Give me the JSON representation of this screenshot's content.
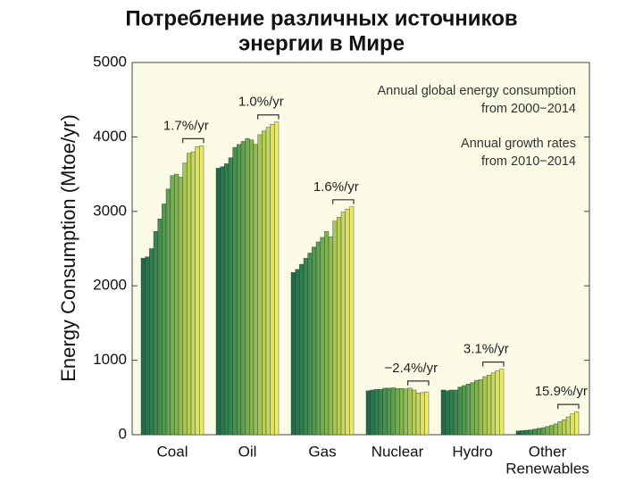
{
  "chart_data": {
    "type": "grouped-bar",
    "title": [
      "Потребление различных источников",
      "энергии в Мире"
    ],
    "ylabel": "Energy Consumption (Mtoe/yr)",
    "ylim": [
      0,
      5000
    ],
    "yticks": [
      0,
      1000,
      2000,
      3000,
      4000,
      5000
    ],
    "annotations": [
      [
        "Annual global energy consumption",
        "from 2000−2014"
      ],
      [
        "Annual growth rates",
        "from 2010−2014"
      ]
    ],
    "colors": [
      "#1f6b4c",
      "#27744d",
      "#2f7d4e",
      "#3a864f",
      "#468f50",
      "#539850",
      "#62a150",
      "#72aa50",
      "#83b350",
      "#94bc52",
      "#a6c555",
      "#b8ce59",
      "#cad75e",
      "#dce064",
      "#eeea6b"
    ],
    "groups": [
      {
        "label": [
          "Coal"
        ],
        "rate": "1.7%/yr",
        "values": [
          2370,
          2390,
          2500,
          2730,
          2900,
          3100,
          3300,
          3480,
          3500,
          3460,
          3650,
          3780,
          3800,
          3870,
          3880
        ]
      },
      {
        "label": [
          "Oil"
        ],
        "rate": "1.0%/yr",
        "values": [
          3580,
          3600,
          3640,
          3720,
          3860,
          3900,
          3940,
          3980,
          3960,
          3900,
          4030,
          4080,
          4130,
          4170,
          4200
        ]
      },
      {
        "label": [
          "Gas"
        ],
        "rate": "1.6%/yr",
        "values": [
          2180,
          2220,
          2290,
          2370,
          2440,
          2520,
          2590,
          2650,
          2730,
          2660,
          2870,
          2920,
          2990,
          3030,
          3060
        ]
      },
      {
        "label": [
          "Nuclear"
        ],
        "rate": "−2.4%/yr",
        "values": [
          590,
          600,
          610,
          610,
          625,
          625,
          630,
          620,
          620,
          615,
          625,
          600,
          560,
          565,
          575
        ]
      },
      {
        "label": [
          "Hydro"
        ],
        "rate": "3.1%/yr",
        "values": [
          600,
          590,
          600,
          600,
          640,
          660,
          680,
          700,
          730,
          740,
          780,
          800,
          830,
          860,
          880
        ]
      },
      {
        "label": [
          "Other",
          "Renewables"
        ],
        "rate": "15.9%/yr",
        "values": [
          50,
          55,
          60,
          65,
          75,
          85,
          95,
          110,
          125,
          145,
          175,
          200,
          240,
          280,
          310
        ]
      }
    ]
  }
}
